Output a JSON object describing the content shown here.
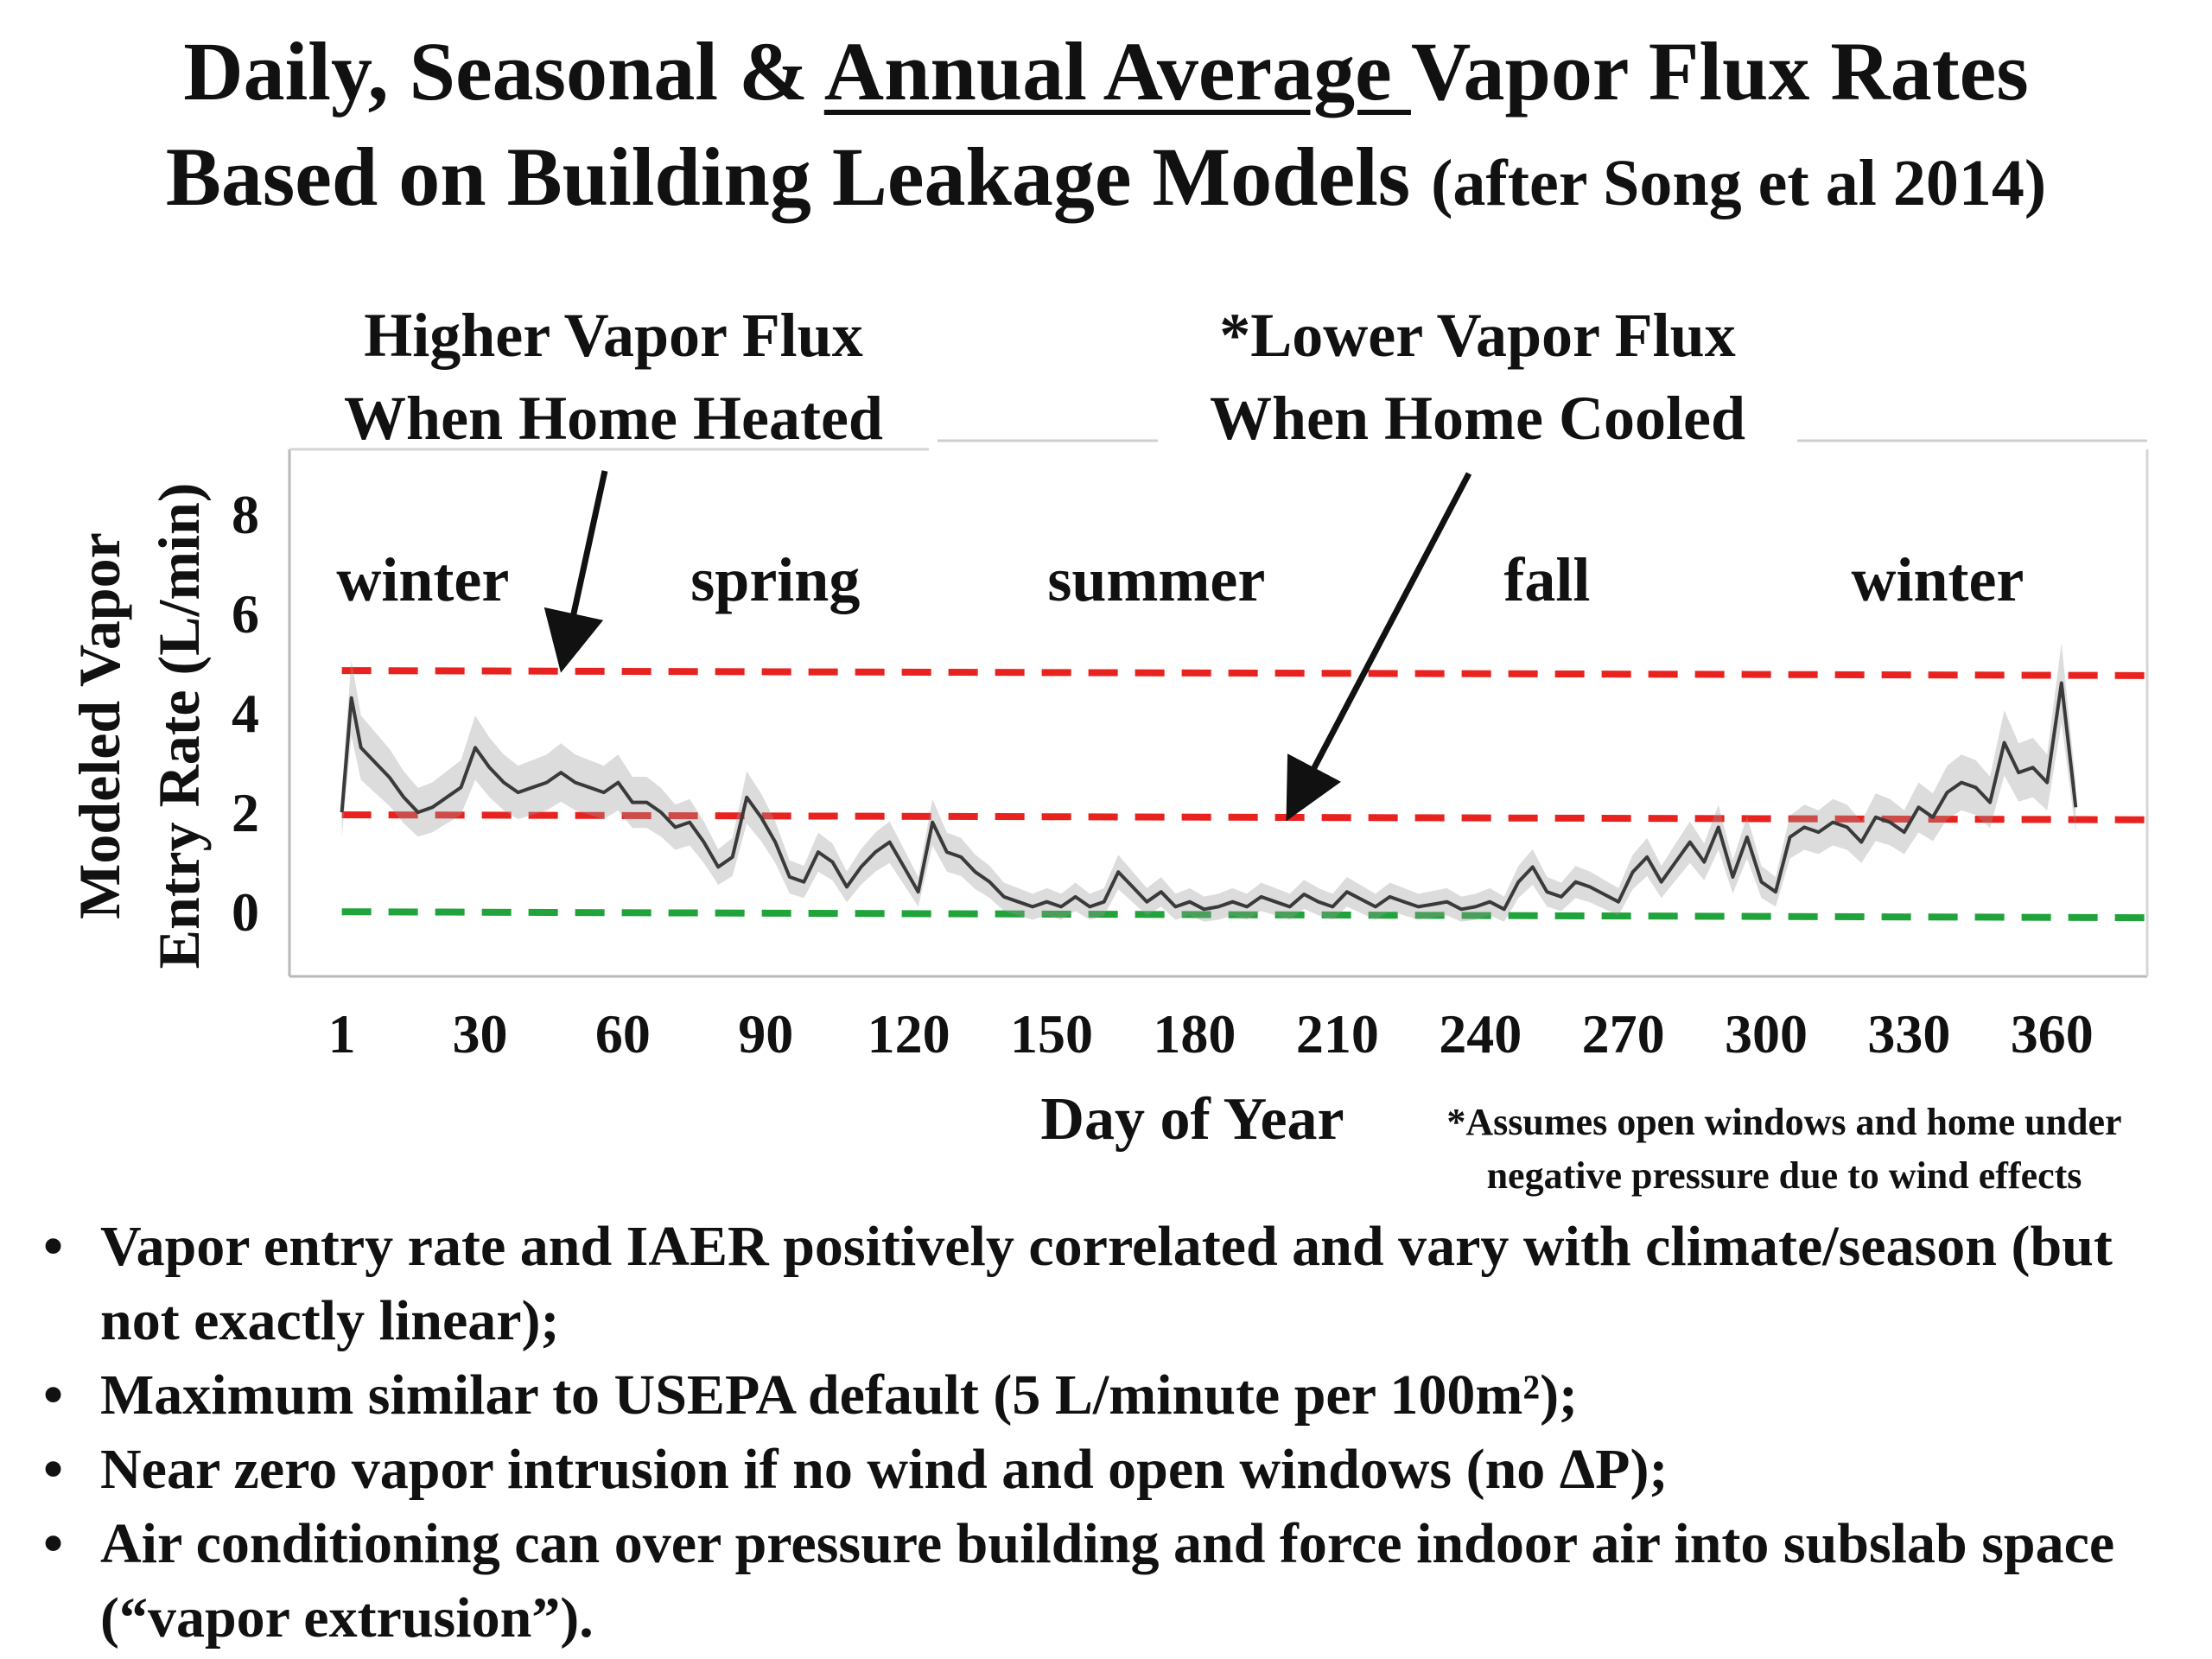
{
  "title": {
    "line1_pre": "Daily, Seasonal & ",
    "line1_underlined": "Annual Average ",
    "line1_post": "Vapor Flux Rates",
    "line2_main": "Based on Building Leakage Models ",
    "line2_note": "(after Song et al 2014)"
  },
  "callouts": {
    "heated": [
      "Higher Vapor Flux",
      "When Home Heated"
    ],
    "cooled": [
      "*Lower Vapor Flux",
      "When Home Cooled"
    ]
  },
  "footnote": [
    "*Assumes open windows and home under",
    "negative pressure due to wind effects"
  ],
  "bullets": [
    "Vapor entry rate and IAER positively correlated and vary with climate/season (but not exactly linear);",
    "Maximum similar to USEPA default (5 L/minute per 100m²);",
    "Near zero vapor intrusion if no wind and open windows (no ΔP);",
    "Air conditioning can over pressure building and force indoor air into subslab space (“vapor extrusion”)."
  ],
  "colors": {
    "reference_red": "#e8231f",
    "reference_green": "#1fa33a",
    "series_dark": "#3a3a3a",
    "series_light": "#9a9a9a"
  },
  "chart_data": {
    "type": "line",
    "title": "",
    "xlabel": "Day of Year",
    "ylabel": "Modeled Vapor Entry Rate (L/min)",
    "xlim": [
      -10,
      380
    ],
    "ylim": [
      -1.3,
      9.3
    ],
    "xticks": [
      1,
      30,
      60,
      90,
      120,
      150,
      180,
      210,
      240,
      270,
      300,
      330,
      360
    ],
    "yticks": [
      0,
      2,
      4,
      6,
      8
    ],
    "grid": false,
    "season_labels": [
      {
        "text": "winter",
        "day": 18
      },
      {
        "text": "spring",
        "day": 92
      },
      {
        "text": "summer",
        "day": 172
      },
      {
        "text": "fall",
        "day": 254
      },
      {
        "text": "winter",
        "day": 336
      }
    ],
    "reference_lines": [
      {
        "style": "dashed",
        "color": "red",
        "y_start": 4.85,
        "y_end": 4.75
      },
      {
        "style": "dashed",
        "color": "red",
        "y_start": 1.95,
        "y_end": 1.85
      },
      {
        "style": "dashed",
        "color": "green",
        "y_start": 0.0,
        "y_end": -0.12
      }
    ],
    "series": [
      {
        "x": [
          1,
          3,
          5,
          8,
          11,
          14,
          17,
          20,
          23,
          26,
          29,
          32,
          35,
          38,
          41,
          44,
          47,
          50,
          53,
          56,
          59,
          62,
          65,
          68,
          71,
          74,
          77,
          80,
          83,
          86,
          89,
          92,
          95,
          98,
          101,
          104,
          107,
          110,
          113,
          116,
          119,
          122,
          125,
          128,
          131,
          134,
          137,
          140,
          143,
          146,
          149,
          152,
          155,
          158,
          161,
          164,
          167,
          170,
          173,
          176,
          179,
          182,
          185,
          188,
          191,
          194,
          197,
          200,
          203,
          206,
          209,
          212,
          215,
          218,
          221,
          224,
          227,
          230,
          233,
          236,
          239,
          242,
          245,
          248,
          251,
          254,
          257,
          260,
          263,
          266,
          269,
          272,
          275,
          278,
          281,
          284,
          287,
          290,
          293,
          296,
          299,
          302,
          305,
          308,
          311,
          314,
          317,
          320,
          323,
          326,
          329,
          332,
          335,
          338,
          341,
          344,
          347,
          350,
          353,
          356,
          359,
          362,
          365
        ],
        "values": [
          2.0,
          4.3,
          3.3,
          3.0,
          2.7,
          2.3,
          2.0,
          2.1,
          2.3,
          2.5,
          3.3,
          2.9,
          2.6,
          2.4,
          2.5,
          2.6,
          2.8,
          2.6,
          2.5,
          2.4,
          2.6,
          2.2,
          2.2,
          2.0,
          1.7,
          1.8,
          1.4,
          0.9,
          1.1,
          2.3,
          1.9,
          1.4,
          0.7,
          0.6,
          1.2,
          1.0,
          0.5,
          0.9,
          1.2,
          1.4,
          0.9,
          0.4,
          1.8,
          1.2,
          1.1,
          0.8,
          0.6,
          0.3,
          0.2,
          0.1,
          0.2,
          0.1,
          0.3,
          0.1,
          0.2,
          0.8,
          0.5,
          0.2,
          0.4,
          0.1,
          0.2,
          0.05,
          0.1,
          0.2,
          0.1,
          0.3,
          0.2,
          0.1,
          0.35,
          0.2,
          0.1,
          0.4,
          0.25,
          0.1,
          0.3,
          0.2,
          0.1,
          0.15,
          0.2,
          0.05,
          0.1,
          0.2,
          0.05,
          0.6,
          0.9,
          0.4,
          0.3,
          0.6,
          0.5,
          0.35,
          0.2,
          0.8,
          1.1,
          0.6,
          1.0,
          1.4,
          1.0,
          1.7,
          0.7,
          1.5,
          0.6,
          0.4,
          1.5,
          1.7,
          1.6,
          1.8,
          1.7,
          1.4,
          1.9,
          1.8,
          1.6,
          2.1,
          1.9,
          2.4,
          2.6,
          2.5,
          2.2,
          3.4,
          2.8,
          2.9,
          2.6,
          4.6,
          2.1
        ]
      }
    ]
  }
}
